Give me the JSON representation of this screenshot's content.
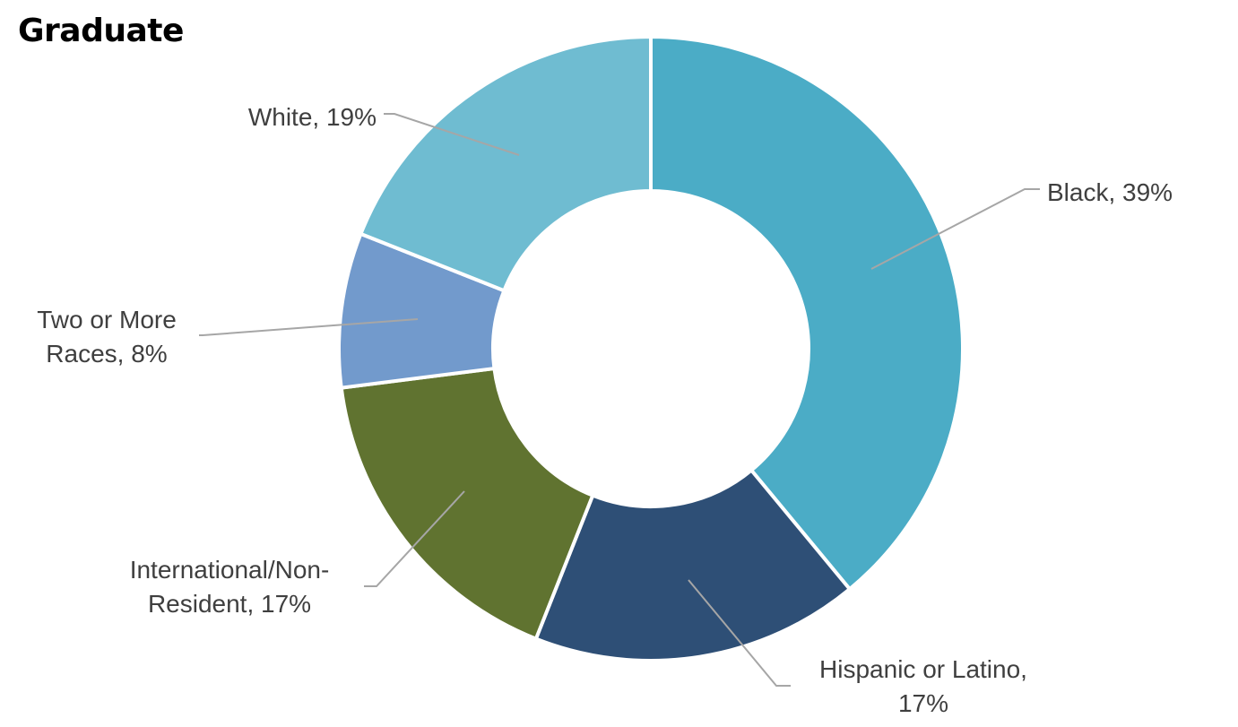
{
  "chart_data": {
    "type": "pie",
    "variant": "donut",
    "title": "Graduate",
    "series": [
      {
        "name": "Black",
        "value": 39,
        "label": "Black, 39%",
        "color": "#4bacc6"
      },
      {
        "name": "Hispanic or Latino",
        "value": 17,
        "label": "Hispanic or Latino, 17%",
        "color": "#2e4f76"
      },
      {
        "name": "International/Non-Resident",
        "value": 17,
        "label": "International/Non-Resident, 17%",
        "color": "#607330"
      },
      {
        "name": "Two or More Races",
        "value": 8,
        "label": "Two or More Races, 8%",
        "color": "#729acc"
      },
      {
        "name": "White",
        "value": 19,
        "label": "White, 19%",
        "color": "#6fbcd1"
      }
    ],
    "legend": "none",
    "data_labels": "outside with leader lines"
  }
}
